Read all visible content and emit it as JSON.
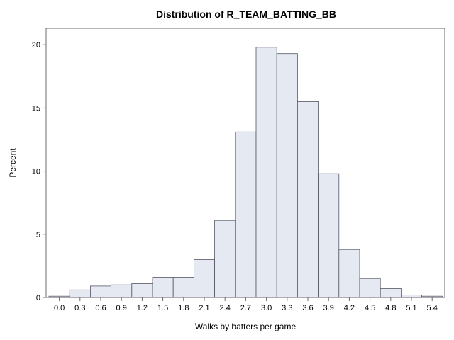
{
  "chart_data": {
    "type": "bar",
    "title": "Distribution of R_TEAM_BATTING_BB",
    "xlabel": "Walks by batters per game",
    "ylabel": "Percent",
    "categories": [
      "0.0",
      "0.3",
      "0.6",
      "0.9",
      "1.2",
      "1.5",
      "1.8",
      "2.1",
      "2.4",
      "2.7",
      "3.0",
      "3.3",
      "3.6",
      "3.9",
      "4.2",
      "4.5",
      "4.8",
      "5.1",
      "5.4"
    ],
    "values": [
      0.1,
      0.6,
      0.9,
      1.0,
      1.1,
      1.6,
      1.6,
      3.0,
      6.1,
      13.1,
      19.8,
      19.3,
      15.5,
      9.8,
      3.8,
      1.5,
      0.7,
      0.2,
      0.1
    ],
    "yticks": [
      "0",
      "5",
      "10",
      "15",
      "20"
    ],
    "ylim": [
      0,
      21.3
    ],
    "grid": false,
    "bar_fill": "#e5e9f2",
    "bar_stroke": "#555566",
    "frame_color": "#6b6b6b"
  }
}
